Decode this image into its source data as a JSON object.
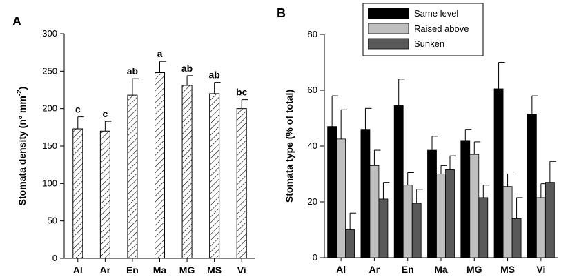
{
  "chart_data": [
    {
      "panel": "A",
      "type": "bar",
      "categories": [
        "Al",
        "Ar",
        "En",
        "Ma",
        "MG",
        "MS",
        "Vi"
      ],
      "values": [
        173,
        170,
        218,
        248,
        231,
        220,
        200
      ],
      "errors": [
        16,
        13,
        22,
        15,
        13,
        15,
        12
      ],
      "significance": [
        "c",
        "c",
        "ab",
        "a",
        "ab",
        "ab",
        "bc"
      ],
      "ylabel_main": "Stomata density (nº mm",
      "ylabel_sup": "-2",
      "ylabel_end": ")",
      "ylim": [
        0,
        300
      ],
      "yticks": [
        "0",
        "50",
        "100",
        "150",
        "200",
        "250",
        "300"
      ],
      "fill": "hatched"
    },
    {
      "panel": "B",
      "type": "bar",
      "categories": [
        "Al",
        "Ar",
        "En",
        "Ma",
        "MG",
        "MS",
        "Vi"
      ],
      "series": [
        {
          "name": "Same level",
          "color": "#000000",
          "values": [
            47,
            46,
            54.5,
            38.5,
            42,
            60.5,
            51.5
          ],
          "errors": [
            11,
            7.5,
            9.5,
            5,
            4,
            9.5,
            6.5
          ]
        },
        {
          "name": "Raised above",
          "color": "#bfbfbf",
          "values": [
            42.5,
            33,
            26,
            30,
            37,
            25.5,
            21.5
          ],
          "errors": [
            10.5,
            5.5,
            4.5,
            3,
            4.5,
            4.5,
            5
          ]
        },
        {
          "name": "Sunken",
          "color": "#595959",
          "values": [
            10,
            21,
            19.5,
            31.5,
            21.5,
            14,
            27
          ],
          "errors": [
            6,
            6,
            5,
            5,
            4.5,
            7.5,
            7.5
          ]
        }
      ],
      "ylabel": "Stomata type (% of total)",
      "ylim": [
        0,
        80
      ],
      "yticks": [
        "0",
        "20",
        "40",
        "60",
        "80"
      ],
      "legend_position": "top"
    }
  ]
}
